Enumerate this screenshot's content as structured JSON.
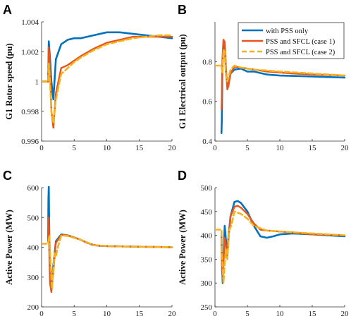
{
  "legend": {
    "entries": [
      "with PSS only",
      "PSS and SFCL (case 1)",
      "PSS and SFCL (case 2)"
    ]
  },
  "colors": {
    "s1": "#0072BD",
    "s2": "#E8541A",
    "s3": "#F5B21F"
  },
  "chart_data": [
    {
      "type": "line",
      "panel": "A",
      "ylabel": "G1 Rotor speed (pu)",
      "xlim": [
        0,
        20
      ],
      "ylim": [
        0.996,
        1.004
      ],
      "xticks": [
        "0",
        "5",
        "10",
        "15",
        "20"
      ],
      "yticks": [
        "0.996",
        "0.998",
        "1",
        "1.002",
        "1.004"
      ],
      "series": [
        {
          "name": "with PSS only",
          "x": [
            0,
            1,
            1.1,
            1.3,
            1.5,
            1.8,
            2.2,
            3,
            4,
            5,
            6,
            7,
            8,
            10,
            12,
            14,
            16,
            18,
            20
          ],
          "y": [
            1.0,
            1.0,
            1.0027,
            1.0015,
            1.0,
            0.9988,
            1.0015,
            1.0025,
            1.0028,
            1.0029,
            1.0029,
            1.003,
            1.0031,
            1.0033,
            1.0033,
            1.0032,
            1.0031,
            1.003,
            1.0029
          ]
        },
        {
          "name": "PSS and SFCL (case 1)",
          "x": [
            0,
            1,
            1.1,
            1.3,
            1.5,
            1.8,
            2.2,
            3,
            4,
            5,
            6,
            8,
            10,
            12,
            14,
            16,
            18,
            20
          ],
          "y": [
            1.0,
            1.0,
            1.0023,
            1.001,
            0.998,
            0.9969,
            0.9992,
            1.0009,
            1.0011,
            1.0014,
            1.0017,
            1.0022,
            1.0026,
            1.0028,
            1.003,
            1.003,
            1.003,
            1.003
          ]
        },
        {
          "name": "PSS and SFCL (case 2)",
          "x": [
            0,
            1,
            1.1,
            1.3,
            1.5,
            1.8,
            2.2,
            3,
            4,
            5,
            6,
            8,
            10,
            12,
            14,
            16,
            18,
            20
          ],
          "y": [
            1.0,
            1.0,
            1.0012,
            1.0,
            0.998,
            0.9972,
            0.9988,
            1.0005,
            1.0009,
            1.0013,
            1.0016,
            1.0021,
            1.0025,
            1.0027,
            1.0029,
            1.003,
            1.0031,
            1.0031
          ]
        }
      ]
    },
    {
      "type": "line",
      "panel": "B",
      "ylabel": "G1 Electrical output (pu)",
      "xlim": [
        0,
        20
      ],
      "ylim": [
        0.4,
        1.0
      ],
      "xticks": [
        "0",
        "5",
        "10",
        "15",
        "20"
      ],
      "yticks": [
        "0.4",
        "0.6",
        "0.8"
      ],
      "series": [
        {
          "name": "with PSS only",
          "x": [
            1,
            1.05,
            1.15,
            1.3,
            1.5,
            1.7,
            1.9,
            2.1,
            2.4,
            3,
            4,
            5,
            6,
            8,
            10,
            12,
            15,
            20
          ],
          "y": [
            0.44,
            0.5,
            0.78,
            0.88,
            0.88,
            0.75,
            0.68,
            0.7,
            0.74,
            0.76,
            0.765,
            0.75,
            0.75,
            0.735,
            0.73,
            0.728,
            0.725,
            0.72
          ]
        },
        {
          "name": "PSS and SFCL (case 1)",
          "x": [
            1,
            1.05,
            1.15,
            1.3,
            1.5,
            1.7,
            1.9,
            2.1,
            2.4,
            3,
            4,
            5,
            6,
            8,
            10,
            12,
            15,
            20
          ],
          "y": [
            0.56,
            0.62,
            0.82,
            0.91,
            0.9,
            0.77,
            0.66,
            0.68,
            0.74,
            0.775,
            0.77,
            0.765,
            0.76,
            0.75,
            0.745,
            0.74,
            0.735,
            0.73
          ]
        },
        {
          "name": "PSS and SFCL (case 2)",
          "x": [
            0,
            1,
            1.15,
            1.3,
            1.5,
            1.7,
            1.9,
            2.1,
            2.4,
            3,
            4,
            6,
            8,
            10,
            15,
            20
          ],
          "y": [
            0.78,
            0.78,
            0.74,
            0.86,
            0.85,
            0.73,
            0.7,
            0.72,
            0.76,
            0.78,
            0.77,
            0.76,
            0.755,
            0.75,
            0.74,
            0.73
          ]
        }
      ]
    },
    {
      "type": "line",
      "panel": "C",
      "ylabel": "Active Power (MW)",
      "xlim": [
        0,
        20
      ],
      "ylim": [
        200,
        600
      ],
      "xticks": [
        "0",
        "5",
        "10",
        "15",
        "20"
      ],
      "yticks": [
        "200",
        "300",
        "400",
        "500",
        "600"
      ],
      "series": [
        {
          "name": "with PSS only",
          "x": [
            1,
            1.05,
            1.1,
            1.15,
            1.2,
            1.3,
            1.5,
            1.8,
            2.2,
            3,
            4,
            5,
            6,
            7,
            8,
            9,
            10,
            12,
            15,
            20
          ],
          "y": [
            420,
            560,
            605,
            520,
            400,
            300,
            270,
            340,
            420,
            443,
            440,
            433,
            425,
            415,
            407,
            405,
            404,
            403,
            402,
            400
          ]
        },
        {
          "name": "PSS and SFCL (case 1)",
          "x": [
            1,
            1.05,
            1.1,
            1.15,
            1.2,
            1.3,
            1.5,
            1.8,
            2.2,
            3,
            4,
            5,
            6,
            7,
            8,
            9,
            10,
            12,
            15,
            20
          ],
          "y": [
            420,
            470,
            500,
            460,
            360,
            280,
            250,
            320,
            415,
            441,
            440,
            433,
            425,
            415,
            408,
            405,
            404,
            403,
            402,
            400
          ]
        },
        {
          "name": "PSS and SFCL (case 2)",
          "x": [
            0,
            1,
            1.2,
            1.4,
            1.6,
            1.8,
            2.0,
            2.2,
            2.5,
            3,
            4,
            6,
            8,
            10,
            15,
            20
          ],
          "y": [
            412,
            412,
            440,
            330,
            260,
            330,
            380,
            370,
            400,
            440,
            438,
            425,
            407,
            404,
            402,
            400
          ]
        }
      ]
    },
    {
      "type": "line",
      "panel": "D",
      "ylabel": "Active Power (MW)",
      "xlim": [
        0,
        20
      ],
      "ylim": [
        250,
        500
      ],
      "xticks": [
        "0",
        "5",
        "10",
        "15",
        "20"
      ],
      "yticks": [
        "250",
        "300",
        "350",
        "400",
        "450",
        "500"
      ],
      "series": [
        {
          "name": "with PSS only",
          "x": [
            1,
            1.1,
            1.2,
            1.35,
            1.5,
            1.7,
            1.9,
            2.1,
            2.4,
            3,
            3.5,
            4,
            5,
            6,
            7,
            8,
            9,
            10,
            12,
            15,
            20
          ],
          "y": [
            400,
            330,
            300,
            360,
            420,
            390,
            360,
            400,
            440,
            470,
            472,
            468,
            450,
            420,
            398,
            395,
            398,
            402,
            404,
            402,
            398
          ]
        },
        {
          "name": "PSS and SFCL (case 1)",
          "x": [
            1,
            1.1,
            1.2,
            1.35,
            1.5,
            1.7,
            1.9,
            2.1,
            2.4,
            3,
            3.5,
            4,
            5,
            6,
            7,
            8,
            10,
            12,
            15,
            20
          ],
          "y": [
            405,
            340,
            310,
            350,
            395,
            380,
            355,
            395,
            440,
            460,
            462,
            458,
            445,
            425,
            412,
            410,
            408,
            406,
            402,
            400
          ]
        },
        {
          "name": "PSS and SFCL (case 2)",
          "x": [
            0,
            1,
            1.1,
            1.3,
            1.5,
            1.7,
            1.9,
            2.2,
            2.5,
            3,
            4,
            5,
            6,
            8,
            10,
            15,
            20
          ],
          "y": [
            412,
            412,
            360,
            300,
            340,
            370,
            350,
            410,
            420,
            450,
            445,
            435,
            420,
            410,
            408,
            404,
            400
          ]
        }
      ]
    }
  ]
}
